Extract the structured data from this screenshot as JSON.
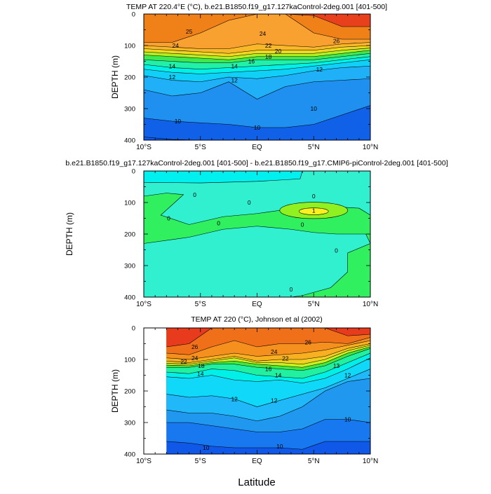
{
  "chart_data": [
    {
      "type": "contour",
      "title": "TEMP AT 220.4°E (°C), b.e21.B1850.f19_g17.127kaControl-2deg.001 [401-500]",
      "ylabel": "DEPTH (m)",
      "xlim": [
        -10,
        10
      ],
      "ylim": [
        400,
        0
      ],
      "xticklabels": [
        "10°S",
        "5°S",
        "EQ",
        "5°N",
        "10°N"
      ],
      "yticks": [
        0,
        100,
        200,
        300,
        400
      ],
      "lats": [
        -10,
        -7.5,
        -5,
        -2.5,
        0,
        2.5,
        5,
        7.5,
        10
      ],
      "coldest_color": "#1058e8",
      "isotherms": [
        {
          "level": 9,
          "depths": [
            390,
            398,
            400,
            400,
            400,
            400,
            400,
            400,
            400
          ],
          "color": "#1060e8"
        },
        {
          "level": 10,
          "depths": [
            330,
            340,
            345,
            350,
            360,
            360,
            350,
            320,
            290
          ],
          "color": "#2090f0"
        },
        {
          "level": 11,
          "depths": [
            240,
            260,
            250,
            215,
            270,
            230,
            215,
            210,
            205
          ],
          "color": "#20b0f8"
        },
        {
          "level": 12,
          "depths": [
            195,
            210,
            215,
            200,
            205,
            195,
            180,
            170,
            165
          ],
          "color": "#10d0f8"
        },
        {
          "level": 13,
          "depths": [
            175,
            185,
            190,
            185,
            180,
            175,
            165,
            155,
            145
          ],
          "color": "#00f0e8"
        },
        {
          "level": 14,
          "depths": [
            160,
            170,
            175,
            170,
            165,
            160,
            155,
            145,
            135
          ],
          "color": "#20f0a8"
        },
        {
          "level": 16,
          "depths": [
            145,
            150,
            155,
            155,
            145,
            145,
            145,
            135,
            125
          ],
          "color": "#40e850"
        },
        {
          "level": 18,
          "depths": [
            130,
            135,
            140,
            145,
            135,
            135,
            135,
            125,
            115
          ],
          "color": "#b0f020"
        },
        {
          "level": 20,
          "depths": [
            120,
            125,
            130,
            135,
            125,
            125,
            125,
            115,
            108
          ],
          "color": "#f0d820"
        },
        {
          "level": 22,
          "depths": [
            110,
            115,
            120,
            125,
            115,
            115,
            115,
            105,
            100
          ],
          "color": "#f8b828"
        },
        {
          "level": 24,
          "depths": [
            100,
            105,
            110,
            110,
            95,
            100,
            105,
            95,
            90
          ],
          "color": "#f8a030"
        },
        {
          "level": 26,
          "depths": [
            90,
            90,
            60,
            20,
            0,
            0,
            60,
            80,
            80
          ],
          "color": "#f08018"
        },
        {
          "level": 27,
          "depths": [
            0,
            0,
            0,
            0,
            0,
            0,
            5,
            40,
            40
          ],
          "color": "#e8401c"
        }
      ],
      "labels": [
        {
          "text": "25",
          "lat": -6,
          "depth": 55
        },
        {
          "text": "24",
          "lat": 0.5,
          "depth": 62
        },
        {
          "text": "26",
          "lat": 7,
          "depth": 85
        },
        {
          "text": "24",
          "lat": -7.2,
          "depth": 100
        },
        {
          "text": "22",
          "lat": 1,
          "depth": 100
        },
        {
          "text": "20",
          "lat": 1,
          "depth": 118
        },
        {
          "text": "18",
          "lat": 1,
          "depth": 135
        },
        {
          "text": "16",
          "lat": -0.5,
          "depth": 150
        },
        {
          "text": "14",
          "lat": -2,
          "depth": 165
        },
        {
          "text": "14",
          "lat": -7.5,
          "depth": 165
        },
        {
          "text": "12",
          "lat": -7.5,
          "depth": 200
        },
        {
          "text": "12",
          "lat": -2,
          "depth": 210
        },
        {
          "text": "12",
          "lat": 5.5,
          "depth": 175
        },
        {
          "text": "10",
          "lat": 5,
          "depth": 300
        },
        {
          "text": "10",
          "lat": -7,
          "depth": 340
        },
        {
          "text": "10",
          "lat": 0,
          "depth": 360
        }
      ]
    },
    {
      "type": "contour",
      "title": "b.e21.B1850.f19_g17.127kaControl-2deg.001 [401-500] - b.e21.B1850.f19_g17.CMIP6-piControl-2deg.001 [401-500]",
      "ylabel": "DEPTH (m)",
      "xlim": [
        -10,
        10
      ],
      "ylim": [
        400,
        0
      ],
      "xticklabels": [
        "10°S",
        "5°S",
        "EQ",
        "5°N",
        "10°N"
      ],
      "yticks": [
        0,
        100,
        200,
        300,
        400
      ],
      "background_color": "#30f0d0",
      "regions": [
        {
          "name": "negative-cyan",
          "color": "#00f0f0",
          "points": [
            [
              -10,
              0
            ],
            [
              4,
              0
            ],
            [
              3.8,
              25
            ],
            [
              0,
              33
            ],
            [
              -5,
              38
            ],
            [
              -10,
              36
            ]
          ]
        },
        {
          "name": "positive-green",
          "color": "#30f060",
          "points": [
            [
              -10,
              80
            ],
            [
              -8,
              70
            ],
            [
              -6.5,
              75
            ],
            [
              -8.5,
              140
            ],
            [
              -6,
              170
            ],
            [
              -3,
              145
            ],
            [
              0,
              135
            ],
            [
              3,
              120
            ],
            [
              6,
              112
            ],
            [
              9,
              118
            ],
            [
              10,
              140
            ],
            [
              10,
              230
            ],
            [
              8,
              260
            ],
            [
              8,
              320
            ],
            [
              6.5,
              370
            ],
            [
              4,
              395
            ],
            [
              3,
              400
            ],
            [
              10,
              400
            ],
            [
              10,
              230
            ],
            [
              9.6,
              200
            ],
            [
              7,
              200
            ],
            [
              5,
              195
            ],
            [
              3,
              185
            ],
            [
              0,
              175
            ],
            [
              -3,
              185
            ],
            [
              -6,
              210
            ],
            [
              -10,
              230
            ]
          ]
        },
        {
          "name": "positive-light-green",
          "color": "#90f020",
          "ellipse": [
            5,
            125,
            3,
            26
          ]
        },
        {
          "name": "positive-yellow",
          "color": "#f8f020",
          "ellipse": [
            5,
            128,
            1.3,
            11
          ]
        }
      ],
      "labels": [
        {
          "text": "0",
          "lat": -5.5,
          "depth": 75
        },
        {
          "text": "0",
          "lat": -0.7,
          "depth": 100
        },
        {
          "text": "0",
          "lat": 5,
          "depth": 80
        },
        {
          "text": "1",
          "lat": 5,
          "depth": 125
        },
        {
          "text": "0",
          "lat": -7.8,
          "depth": 150
        },
        {
          "text": "0",
          "lat": -3.4,
          "depth": 165
        },
        {
          "text": "0",
          "lat": 4,
          "depth": 170
        },
        {
          "text": "0",
          "lat": 7,
          "depth": 252
        },
        {
          "text": "0",
          "lat": 3,
          "depth": 375
        }
      ]
    },
    {
      "type": "contour",
      "title": "TEMP AT 220 (°C), Johnson et al (2002)",
      "ylabel": "DEPTH (m)",
      "xlabel": "Latitude",
      "xlim": [
        -10,
        10
      ],
      "ylim": [
        400,
        0
      ],
      "xticklabels": [
        "10°S",
        "5°S",
        "EQ",
        "5°N",
        "10°N"
      ],
      "yticks": [
        0,
        100,
        200,
        300,
        400
      ],
      "lats": [
        -8,
        -6,
        -4,
        -2,
        0,
        2,
        4,
        6,
        8,
        10
      ],
      "coldest_color": "#1058e8",
      "isotherms": [
        {
          "level": 9,
          "depths": [
            360,
            365,
            375,
            380,
            380,
            380,
            385,
            360,
            360,
            360
          ],
          "color": "#1878f0"
        },
        {
          "level": 10,
          "depths": [
            300,
            300,
            310,
            320,
            330,
            330,
            320,
            290,
            290,
            300
          ],
          "color": "#2098f0"
        },
        {
          "level": 11,
          "depths": [
            260,
            270,
            270,
            280,
            295,
            280,
            250,
            200,
            170,
            160
          ],
          "color": "#20b8f8"
        },
        {
          "level": 12,
          "depths": [
            210,
            220,
            215,
            225,
            250,
            230,
            210,
            190,
            160,
            130
          ],
          "color": "#10d8f8"
        },
        {
          "level": 13,
          "depths": [
            155,
            160,
            150,
            165,
            170,
            165,
            175,
            160,
            130,
            95
          ],
          "color": "#00f0e8"
        },
        {
          "level": 14,
          "depths": [
            140,
            145,
            130,
            135,
            150,
            155,
            160,
            140,
            110,
            80
          ],
          "color": "#20f0a0"
        },
        {
          "level": 16,
          "depths": [
            125,
            125,
            115,
            115,
            125,
            130,
            135,
            120,
            90,
            65
          ],
          "color": "#40e840"
        },
        {
          "level": 18,
          "depths": [
            118,
            120,
            110,
            105,
            115,
            120,
            125,
            110,
            80,
            60
          ],
          "color": "#c8f020"
        },
        {
          "level": 20,
          "depths": [
            112,
            115,
            105,
            95,
            110,
            110,
            115,
            100,
            72,
            55
          ],
          "color": "#f0d020"
        },
        {
          "level": 22,
          "depths": [
            105,
            110,
            100,
            90,
            105,
            100,
            100,
            90,
            65,
            50
          ],
          "color": "#f8b020"
        },
        {
          "level": 24,
          "depths": [
            95,
            100,
            90,
            80,
            90,
            85,
            80,
            70,
            55,
            40
          ],
          "color": "#f5901e"
        },
        {
          "level": 26,
          "depths": [
            80,
            85,
            60,
            40,
            60,
            50,
            50,
            45,
            50,
            30
          ],
          "color": "#f0701a"
        },
        {
          "level": 27,
          "depths": [
            60,
            50,
            0,
            0,
            0,
            0,
            0,
            0,
            25,
            20
          ],
          "color": "#e83a1c"
        }
      ],
      "labels": [
        {
          "text": "26",
          "lat": -5.5,
          "depth": 60
        },
        {
          "text": "24",
          "lat": -5.5,
          "depth": 95
        },
        {
          "text": "22",
          "lat": -5.6,
          "depth": 107
        },
        {
          "text": "18",
          "lat": -5.8,
          "depth": 120
        },
        {
          "text": "24",
          "lat": 1.5,
          "depth": 75
        },
        {
          "text": "22",
          "lat": 2.5,
          "depth": 97
        },
        {
          "text": "16",
          "lat": 1,
          "depth": 130
        },
        {
          "text": "26",
          "lat": 4.5,
          "depth": 45
        },
        {
          "text": "14",
          "lat": -5,
          "depth": 145
        },
        {
          "text": "14",
          "lat": 1,
          "depth": 150
        },
        {
          "text": "13",
          "lat": 7,
          "depth": 120
        },
        {
          "text": "12",
          "lat": 8,
          "depth": 150
        },
        {
          "text": "12",
          "lat": -2,
          "depth": 225
        },
        {
          "text": "12",
          "lat": 1.5,
          "depth": 230
        },
        {
          "text": "10",
          "lat": 8,
          "depth": 290
        },
        {
          "text": "10",
          "lat": -4.5,
          "depth": 380
        },
        {
          "text": "10",
          "lat": 2,
          "depth": 375
        }
      ]
    }
  ]
}
